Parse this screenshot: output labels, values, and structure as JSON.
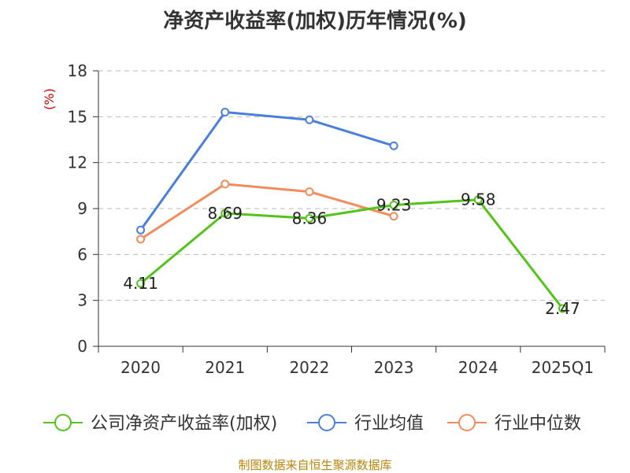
{
  "chart_data": {
    "type": "line",
    "title": "净资产收益率(加权)历年情况(%)",
    "ylabel": "(%)",
    "xlabel": "",
    "ylim": [
      0,
      18
    ],
    "yticks": [
      0,
      3,
      6,
      9,
      12,
      15,
      18
    ],
    "categories": [
      "2020",
      "2021",
      "2022",
      "2023",
      "2024",
      "2025Q1"
    ],
    "grid": "horizontal dashed",
    "legend_position": "bottom",
    "series": [
      {
        "name": "公司净资产收益率(加权)",
        "color": "#52c41a",
        "values": [
          4.11,
          8.69,
          8.36,
          9.23,
          9.58,
          2.47
        ],
        "labels": [
          "4.11",
          "8.69",
          "8.36",
          "9.23",
          "9.58",
          "2.47"
        ],
        "show_labels": true
      },
      {
        "name": "行业均值",
        "color": "#4a7fdc",
        "values": [
          7.6,
          15.3,
          14.8,
          13.1,
          null,
          null
        ],
        "show_labels": false
      },
      {
        "name": "行业中位数",
        "color": "#f28c5a",
        "values": [
          7.0,
          10.6,
          10.1,
          8.5,
          null,
          null
        ],
        "show_labels": false
      }
    ]
  },
  "source_note": "制图数据来自恒生聚源数据库",
  "colors": {
    "ylabel": "#cc0000",
    "source": "#b8860b",
    "axis": "#333333",
    "grid": "#bbbbbb"
  }
}
